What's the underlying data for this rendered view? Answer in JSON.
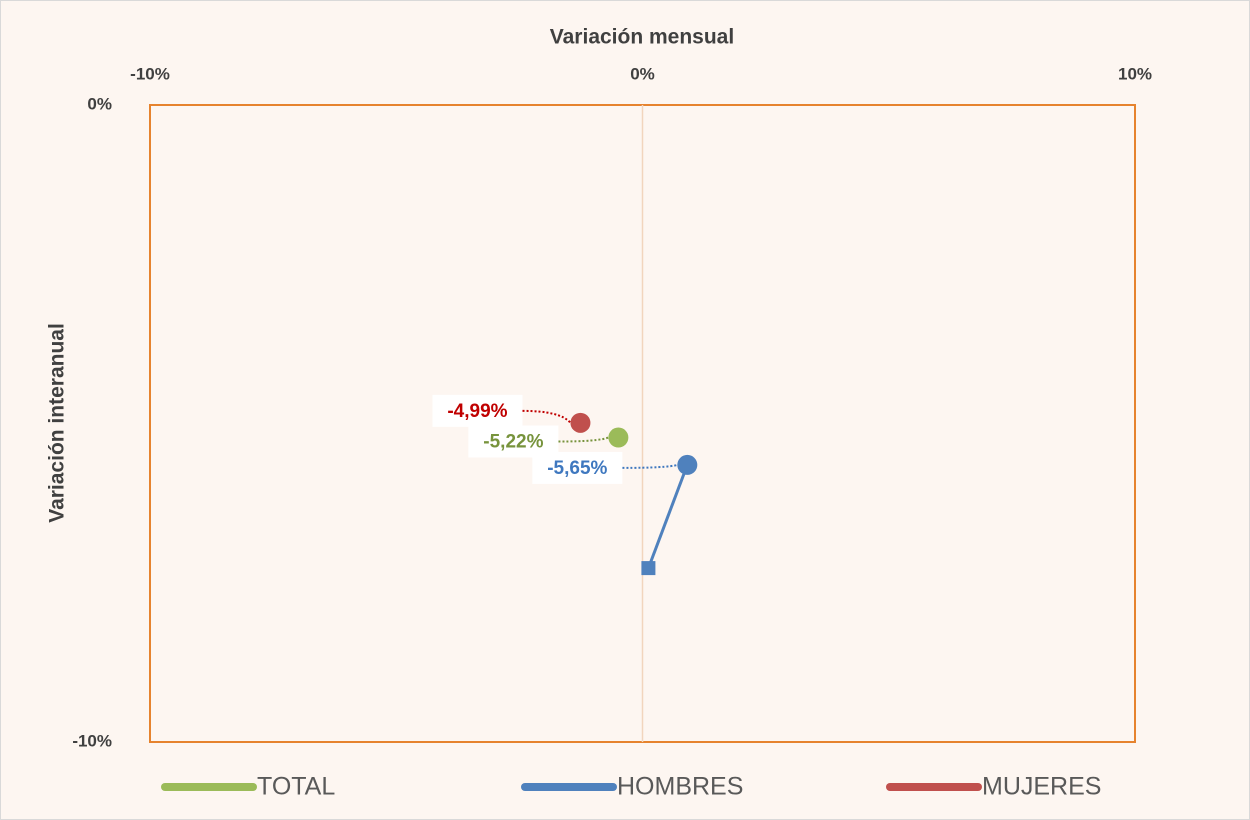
{
  "chart_data": {
    "type": "scatter",
    "x_label": "Variación mensual",
    "y_label": "Variación interanual",
    "xlim": [
      -10,
      10
    ],
    "ylim": [
      -10,
      0
    ],
    "xticks": [
      {
        "value": -10,
        "label": "-10%"
      },
      {
        "value": 0,
        "label": "0%"
      },
      {
        "value": 10,
        "label": "10%"
      }
    ],
    "yticks": [
      {
        "value": 0,
        "label": "0%"
      },
      {
        "value": -10,
        "label": "-10%"
      }
    ],
    "series": [
      {
        "name": "TOTAL",
        "color": "#9bbb59",
        "label_color": "#77933c",
        "x": [
          -0.49
        ],
        "values": [
          -5.22
        ],
        "value_labels": [
          "-5,22%"
        ]
      },
      {
        "name": "HOMBRES",
        "color": "#4f81bd",
        "label_color": "#3f78bf",
        "x": [
          0.12,
          0.91
        ],
        "values": [
          -7.27,
          -5.65
        ],
        "value_labels": [
          null,
          "-5,65%"
        ]
      },
      {
        "name": "MUJERES",
        "color": "#c0504d",
        "label_color": "#c00000",
        "x": [
          -1.26
        ],
        "values": [
          -4.99
        ],
        "value_labels": [
          "-4,99%"
        ]
      }
    ]
  }
}
